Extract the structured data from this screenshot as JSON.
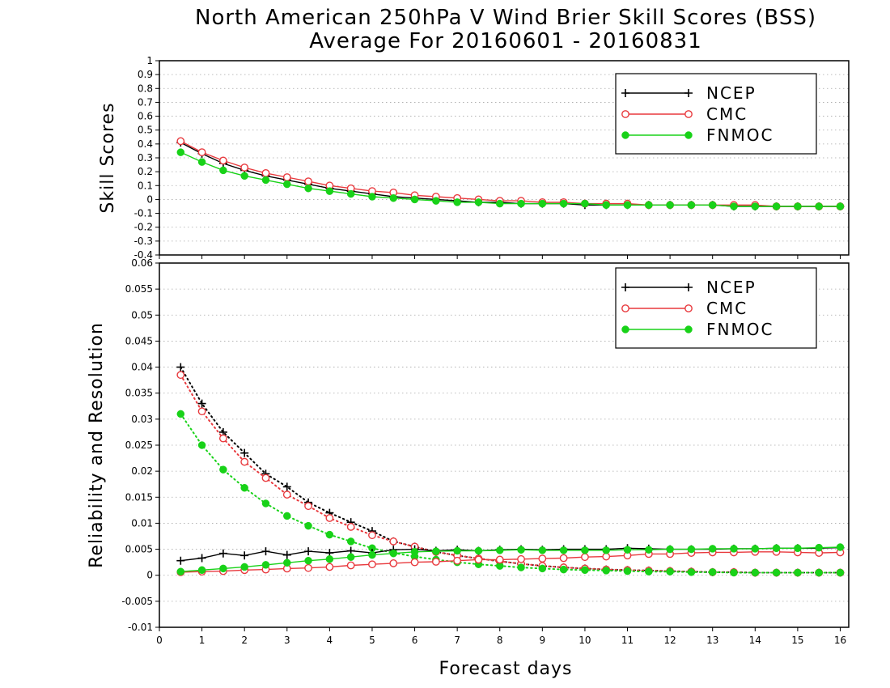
{
  "title_line1": "North American 250hPa V Wind Brier Skill Scores (BSS)",
  "title_line2": "Average For 20160601 - 20160831",
  "xlabel": "Forecast days",
  "colors": {
    "NCEP": "#000000",
    "CMC": "#e8393d",
    "FNMOC": "#18d218"
  },
  "chart_data": [
    {
      "type": "line",
      "ylabel": "Skill Scores",
      "ylim": [
        -0.4,
        1
      ],
      "yticks": [
        "1",
        "0.9",
        "0.8",
        "0.7",
        "0.6",
        "0.5",
        "0.4",
        "0.3",
        "0.2",
        "0.1",
        "0",
        "-0.1",
        "-0.2",
        "-0.3",
        "-0.4"
      ],
      "ytick_values": [
        1,
        0.9,
        0.8,
        0.7,
        0.6,
        0.5,
        0.4,
        0.3,
        0.2,
        0.1,
        0,
        -0.1,
        -0.2,
        -0.3,
        -0.4
      ],
      "xlim": [
        0,
        16.2
      ],
      "xticks": [
        "0",
        "1",
        "2",
        "3",
        "4",
        "5",
        "6",
        "7",
        "8",
        "9",
        "10",
        "11",
        "12",
        "13",
        "14",
        "15",
        "16"
      ],
      "grid": true,
      "legend_position": "top-right",
      "x": [
        0.5,
        1,
        1.5,
        2,
        2.5,
        3,
        3.5,
        4,
        4.5,
        5,
        5.5,
        6,
        6.5,
        7,
        7.5,
        8,
        8.5,
        9,
        9.5,
        10,
        10.5,
        11,
        11.5,
        12,
        12.5,
        13,
        13.5,
        14,
        14.5,
        15,
        15.5,
        16
      ],
      "series": [
        {
          "name": "NCEP",
          "style": "solid",
          "marker": "plus",
          "values": [
            0.41,
            0.33,
            0.26,
            0.21,
            0.17,
            0.14,
            0.11,
            0.08,
            0.06,
            0.04,
            0.02,
            0.01,
            0.0,
            -0.01,
            -0.02,
            -0.02,
            -0.03,
            -0.03,
            -0.03,
            -0.04,
            -0.04,
            -0.04,
            -0.04,
            -0.04,
            -0.04,
            -0.04,
            -0.05,
            -0.05,
            -0.05,
            -0.05,
            -0.05,
            -0.05
          ]
        },
        {
          "name": "CMC",
          "style": "solid",
          "marker": "open-circle",
          "values": [
            0.42,
            0.34,
            0.28,
            0.23,
            0.19,
            0.16,
            0.13,
            0.1,
            0.08,
            0.06,
            0.05,
            0.03,
            0.02,
            0.01,
            0.0,
            -0.01,
            -0.01,
            -0.02,
            -0.02,
            -0.03,
            -0.03,
            -0.03,
            -0.04,
            -0.04,
            -0.04,
            -0.04,
            -0.04,
            -0.04,
            -0.05,
            -0.05,
            -0.05,
            -0.05
          ]
        },
        {
          "name": "FNMOC",
          "style": "solid",
          "marker": "filled-circle",
          "values": [
            0.34,
            0.27,
            0.21,
            0.17,
            0.14,
            0.11,
            0.08,
            0.06,
            0.04,
            0.02,
            0.01,
            0.0,
            -0.01,
            -0.02,
            -0.02,
            -0.03,
            -0.03,
            -0.03,
            -0.03,
            -0.03,
            -0.04,
            -0.04,
            -0.04,
            -0.04,
            -0.04,
            -0.04,
            -0.05,
            -0.05,
            -0.05,
            -0.05,
            -0.05,
            -0.05
          ]
        }
      ]
    },
    {
      "type": "line",
      "ylabel": "Reliability and Resolution",
      "ylim": [
        -0.01,
        0.06
      ],
      "yticks": [
        "0.06",
        "0.055",
        "0.05",
        "0.045",
        "0.04",
        "0.035",
        "0.03",
        "0.025",
        "0.02",
        "0.015",
        "0.01",
        "0.005",
        "0",
        "-0.005",
        "-0.01"
      ],
      "ytick_values": [
        0.06,
        0.055,
        0.05,
        0.045,
        0.04,
        0.035,
        0.03,
        0.025,
        0.02,
        0.015,
        0.01,
        0.005,
        0,
        -0.005,
        -0.01
      ],
      "xlim": [
        0,
        16.2
      ],
      "xticks": [
        "0",
        "1",
        "2",
        "3",
        "4",
        "5",
        "6",
        "7",
        "8",
        "9",
        "10",
        "11",
        "12",
        "13",
        "14",
        "15",
        "16"
      ],
      "grid": true,
      "legend_position": "top-right",
      "x": [
        0.5,
        1,
        1.5,
        2,
        2.5,
        3,
        3.5,
        4,
        4.5,
        5,
        5.5,
        6,
        6.5,
        7,
        7.5,
        8,
        8.5,
        9,
        9.5,
        10,
        10.5,
        11,
        11.5,
        12,
        12.5,
        13,
        13.5,
        14,
        14.5,
        15,
        15.5,
        16
      ],
      "series": [
        {
          "name": "NCEP",
          "style": "dotted",
          "marker": "plus",
          "legend": false,
          "values": [
            0.04,
            0.033,
            0.0275,
            0.0235,
            0.0195,
            0.017,
            0.014,
            0.012,
            0.0102,
            0.0085,
            0.0065,
            0.0055,
            0.0045,
            0.0038,
            0.0032,
            0.0027,
            0.0022,
            0.0018,
            0.0015,
            0.0013,
            0.0011,
            0.001,
            0.0009,
            0.0008,
            0.0007,
            0.0006,
            0.0006,
            0.0005,
            0.0005,
            0.0005,
            0.0005,
            0.0005
          ]
        },
        {
          "name": "CMC",
          "style": "dotted",
          "marker": "open-circle",
          "legend": false,
          "values": [
            0.0385,
            0.0315,
            0.0263,
            0.0218,
            0.0187,
            0.0155,
            0.0133,
            0.011,
            0.0093,
            0.0077,
            0.0065,
            0.0055,
            0.0045,
            0.0038,
            0.0032,
            0.0027,
            0.0022,
            0.0018,
            0.0015,
            0.0013,
            0.0011,
            0.001,
            0.0009,
            0.0008,
            0.0007,
            0.0006,
            0.0006,
            0.0005,
            0.0005,
            0.0005,
            0.0005,
            0.0005
          ]
        },
        {
          "name": "FNMOC",
          "style": "dotted",
          "marker": "filled-circle",
          "legend": false,
          "values": [
            0.031,
            0.025,
            0.0203,
            0.0168,
            0.0138,
            0.0114,
            0.0095,
            0.0078,
            0.0065,
            0.0052,
            0.0043,
            0.0036,
            0.003,
            0.0025,
            0.0021,
            0.0018,
            0.0015,
            0.0013,
            0.0011,
            0.001,
            0.0009,
            0.0008,
            0.0007,
            0.0007,
            0.0006,
            0.0006,
            0.0005,
            0.0005,
            0.0005,
            0.0005,
            0.0005,
            0.0005
          ]
        },
        {
          "name": "NCEP",
          "style": "solid",
          "marker": "plus",
          "legend": true,
          "values": [
            0.0028,
            0.0033,
            0.0042,
            0.0038,
            0.0046,
            0.0039,
            0.0046,
            0.0043,
            0.0047,
            0.0043,
            0.0049,
            0.005,
            0.0047,
            0.0049,
            0.0047,
            0.0049,
            0.005,
            0.0049,
            0.005,
            0.005,
            0.005,
            0.0052,
            0.0051,
            0.005,
            0.005,
            0.005,
            0.0051,
            0.0051,
            0.0052,
            0.0052,
            0.0052,
            0.0053
          ]
        },
        {
          "name": "CMC",
          "style": "solid",
          "marker": "open-circle",
          "legend": true,
          "values": [
            0.0006,
            0.0007,
            0.0008,
            0.001,
            0.0011,
            0.0013,
            0.0014,
            0.0016,
            0.0019,
            0.0021,
            0.0023,
            0.0025,
            0.0026,
            0.0028,
            0.003,
            0.003,
            0.0031,
            0.0032,
            0.0033,
            0.0035,
            0.0036,
            0.0038,
            0.0041,
            0.0041,
            0.0043,
            0.0044,
            0.0044,
            0.0045,
            0.0045,
            0.0044,
            0.0043,
            0.0044
          ]
        },
        {
          "name": "FNMOC",
          "style": "solid",
          "marker": "filled-circle",
          "legend": true,
          "values": [
            0.0007,
            0.001,
            0.0013,
            0.0016,
            0.002,
            0.0024,
            0.0028,
            0.0031,
            0.0035,
            0.0039,
            0.0042,
            0.0045,
            0.0046,
            0.0047,
            0.0047,
            0.0048,
            0.0049,
            0.0048,
            0.0048,
            0.0048,
            0.0048,
            0.0049,
            0.0049,
            0.005,
            0.005,
            0.0051,
            0.0051,
            0.0051,
            0.0052,
            0.0052,
            0.0053,
            0.0054
          ]
        }
      ]
    }
  ]
}
